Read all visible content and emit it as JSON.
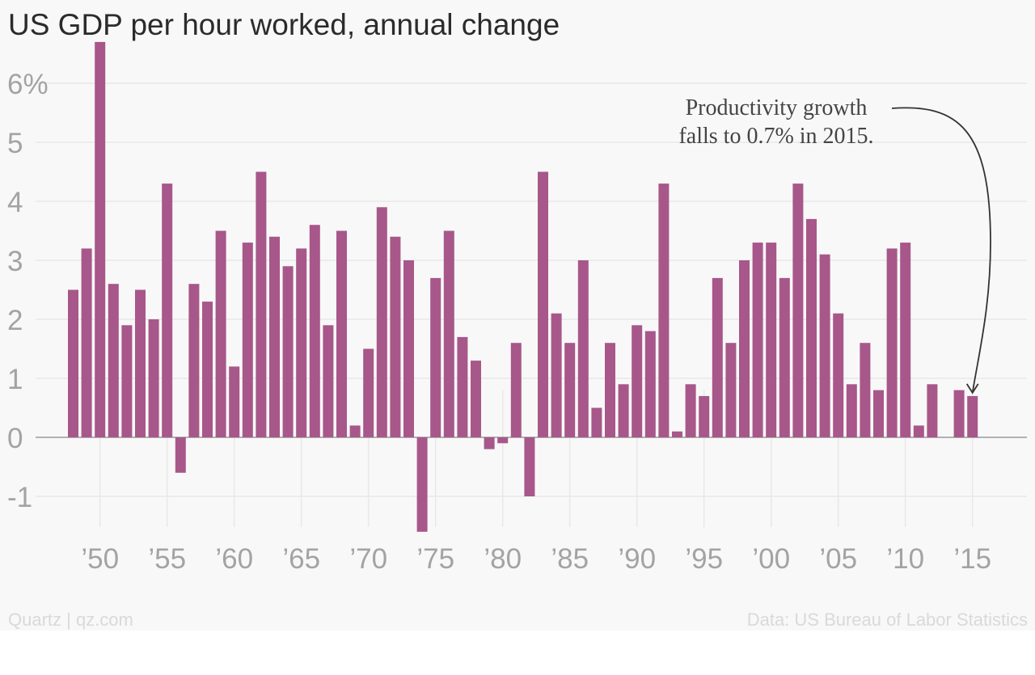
{
  "title": "US GDP per hour worked, annual change",
  "source_left": "Quartz | qz.com",
  "source_right": "Data: US Bureau of Labor Statistics",
  "annotation": {
    "line1": "Productivity growth",
    "line2": "falls to 0.7% in 2015.",
    "target_year": 2015
  },
  "colors": {
    "bar": "#a8578a",
    "grid": "#e8e8e8",
    "zero_line": "#999999",
    "tick_text": "#a3a3a3",
    "arrow": "#333333"
  },
  "chart_data": {
    "type": "bar",
    "title": "US GDP per hour worked, annual change",
    "xlabel": "",
    "ylabel": "",
    "ylim": [
      -1.6,
      6.7
    ],
    "yticks": [
      -1,
      0,
      1,
      2,
      3,
      4,
      5,
      6
    ],
    "ytick_labels": [
      "-1",
      "0",
      "1",
      "2",
      "3",
      "4",
      "5",
      "6%"
    ],
    "xticks": [
      1950,
      1955,
      1960,
      1965,
      1970,
      1975,
      1980,
      1985,
      1990,
      1995,
      2000,
      2005,
      2010,
      2015
    ],
    "xtick_labels": [
      "’50",
      "’55",
      "’60",
      "’65",
      "’70",
      "’75",
      "’80",
      "’85",
      "’90",
      "’95",
      "’00",
      "’05",
      "’10",
      "’15"
    ],
    "grid": true,
    "x": [
      1948,
      1949,
      1950,
      1951,
      1952,
      1953,
      1954,
      1955,
      1956,
      1957,
      1958,
      1959,
      1960,
      1961,
      1962,
      1963,
      1964,
      1965,
      1966,
      1967,
      1968,
      1969,
      1970,
      1971,
      1972,
      1973,
      1974,
      1975,
      1976,
      1977,
      1978,
      1979,
      1980,
      1981,
      1982,
      1983,
      1984,
      1985,
      1986,
      1987,
      1988,
      1989,
      1990,
      1991,
      1992,
      1993,
      1994,
      1995,
      1996,
      1997,
      1998,
      1999,
      2000,
      2001,
      2002,
      2003,
      2004,
      2005,
      2006,
      2007,
      2008,
      2009,
      2010,
      2011,
      2012,
      2013,
      2014,
      2015
    ],
    "values": [
      2.5,
      3.2,
      6.7,
      2.6,
      1.9,
      2.5,
      2.0,
      4.3,
      -0.6,
      2.6,
      2.3,
      3.5,
      1.2,
      3.3,
      4.5,
      3.4,
      2.9,
      3.2,
      3.6,
      1.9,
      3.5,
      0.2,
      1.5,
      3.9,
      3.4,
      3.0,
      -1.6,
      2.7,
      3.5,
      1.7,
      1.3,
      -0.2,
      -0.1,
      1.6,
      -1.0,
      4.5,
      2.1,
      1.6,
      3.0,
      0.5,
      1.6,
      0.9,
      1.9,
      1.8,
      4.3,
      0.1,
      0.9,
      0.7,
      2.7,
      1.6,
      3.0,
      3.3,
      3.3,
      2.7,
      4.3,
      3.7,
      3.1,
      2.1,
      0.9,
      1.6,
      0.8,
      3.2,
      3.3,
      0.2,
      0.9,
      0.0,
      0.8,
      0.7
    ]
  }
}
